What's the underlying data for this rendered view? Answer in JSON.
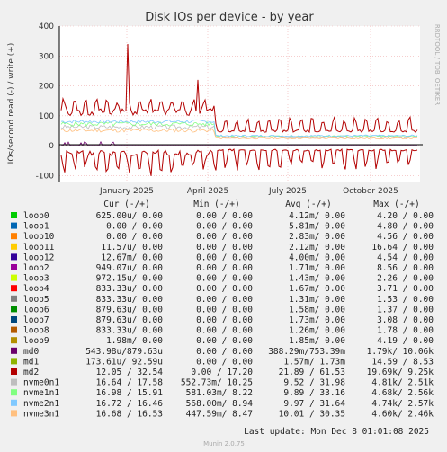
{
  "chart_data": {
    "type": "line",
    "title": "Disk IOs per device - by year",
    "ylabel": "IOs/second read (-) / write (+)",
    "side_label": "RRDTOOL / TOBI OETIKER",
    "ylim": [
      -120,
      400
    ],
    "yticks": [
      400,
      300,
      200,
      100,
      0,
      -100
    ],
    "xticks": [
      "January 2025",
      "April 2025",
      "July 2025",
      "October 2025"
    ],
    "grid": true,
    "legend_header": {
      "cur": "Cur (-/+)",
      "min": "Min (-/+)",
      "avg": "Avg (-/+)",
      "max": "Max (-/+)"
    },
    "series": [
      {
        "name": "loop0",
        "color": "#00cc00",
        "cur": "625.00u/  0.00",
        "min": "0.00 /  0.00",
        "avg": "4.12m/  0.00",
        "max": "4.20 /  0.00"
      },
      {
        "name": "loop1",
        "color": "#0066b3",
        "cur": "0.00 /  0.00",
        "min": "0.00 /  0.00",
        "avg": "5.81m/  0.00",
        "max": "4.80 /  0.00"
      },
      {
        "name": "loop10",
        "color": "#ff8000",
        "cur": "0.00 /  0.00",
        "min": "0.00 /  0.00",
        "avg": "2.83m/  0.00",
        "max": "4.56 /  0.00"
      },
      {
        "name": "loop11",
        "color": "#ffcc00",
        "cur": "11.57u/  0.00",
        "min": "0.00 /  0.00",
        "avg": "2.12m/  0.00",
        "max": "16.64 /  0.00"
      },
      {
        "name": "loop12",
        "color": "#330099",
        "cur": "12.67m/  0.00",
        "min": "0.00 /  0.00",
        "avg": "4.00m/  0.00",
        "max": "4.54 /  0.00"
      },
      {
        "name": "loop2",
        "color": "#990099",
        "cur": "949.07u/  0.00",
        "min": "0.00 /  0.00",
        "avg": "1.71m/  0.00",
        "max": "8.56 /  0.00"
      },
      {
        "name": "loop3",
        "color": "#ccff00",
        "cur": "972.15u/  0.00",
        "min": "0.00 /  0.00",
        "avg": "1.43m/  0.00",
        "max": "2.26 /  0.00"
      },
      {
        "name": "loop4",
        "color": "#ff0000",
        "cur": "833.33u/  0.00",
        "min": "0.00 /  0.00",
        "avg": "1.67m/  0.00",
        "max": "3.71 /  0.00"
      },
      {
        "name": "loop5",
        "color": "#808080",
        "cur": "833.33u/  0.00",
        "min": "0.00 /  0.00",
        "avg": "1.31m/  0.00",
        "max": "1.53 /  0.00"
      },
      {
        "name": "loop6",
        "color": "#008f00",
        "cur": "879.63u/  0.00",
        "min": "0.00 /  0.00",
        "avg": "1.58m/  0.00",
        "max": "1.37 /  0.00"
      },
      {
        "name": "loop7",
        "color": "#00487d",
        "cur": "879.63u/  0.00",
        "min": "0.00 /  0.00",
        "avg": "1.73m/  0.00",
        "max": "3.08 /  0.00"
      },
      {
        "name": "loop8",
        "color": "#b35a00",
        "cur": "833.33u/  0.00",
        "min": "0.00 /  0.00",
        "avg": "1.26m/  0.00",
        "max": "1.78 /  0.00"
      },
      {
        "name": "loop9",
        "color": "#b38f00",
        "cur": "1.98m/  0.00",
        "min": "0.00 /  0.00",
        "avg": "1.85m/  0.00",
        "max": "4.19 /  0.00"
      },
      {
        "name": "md0",
        "color": "#6b006b",
        "cur": "543.98u/879.63u",
        "min": "0.00 /  0.00",
        "avg": "388.29m/753.39m",
        "max": "1.79k/ 10.06k"
      },
      {
        "name": "md1",
        "color": "#8fb300",
        "cur": "173.61u/ 92.59u",
        "min": "0.00 /  0.00",
        "avg": "1.57m/  1.73m",
        "max": "14.59 /  8.53"
      },
      {
        "name": "md2",
        "color": "#b30000",
        "cur": "12.05 / 32.54",
        "min": "0.00 / 17.20",
        "avg": "21.89 / 61.53",
        "max": "19.69k/  9.25k"
      },
      {
        "name": "nvme0n1",
        "color": "#bebebe",
        "cur": "16.64 / 17.58",
        "min": "552.73m/ 10.25",
        "avg": "9.52 / 31.98",
        "max": "4.81k/  2.51k"
      },
      {
        "name": "nvme1n1",
        "color": "#80ff80",
        "cur": "16.98 / 15.91",
        "min": "581.03m/  8.22",
        "avg": "9.89 / 33.16",
        "max": "4.68k/  2.56k"
      },
      {
        "name": "nvme2n1",
        "color": "#80c9ff",
        "cur": "16.72 / 16.46",
        "min": "568.00m/  8.94",
        "avg": "9.97 / 31.64",
        "max": "4.74k/  2.57k"
      },
      {
        "name": "nvme3n1",
        "color": "#ffc080",
        "cur": "16.68 / 16.53",
        "min": "447.59m/  8.47",
        "avg": "10.01 / 30.35",
        "max": "4.60k/  2.46k"
      }
    ],
    "last_update": "Last update: Mon Dec  8 01:01:08 2025",
    "footer": "Munin 2.0.75"
  }
}
